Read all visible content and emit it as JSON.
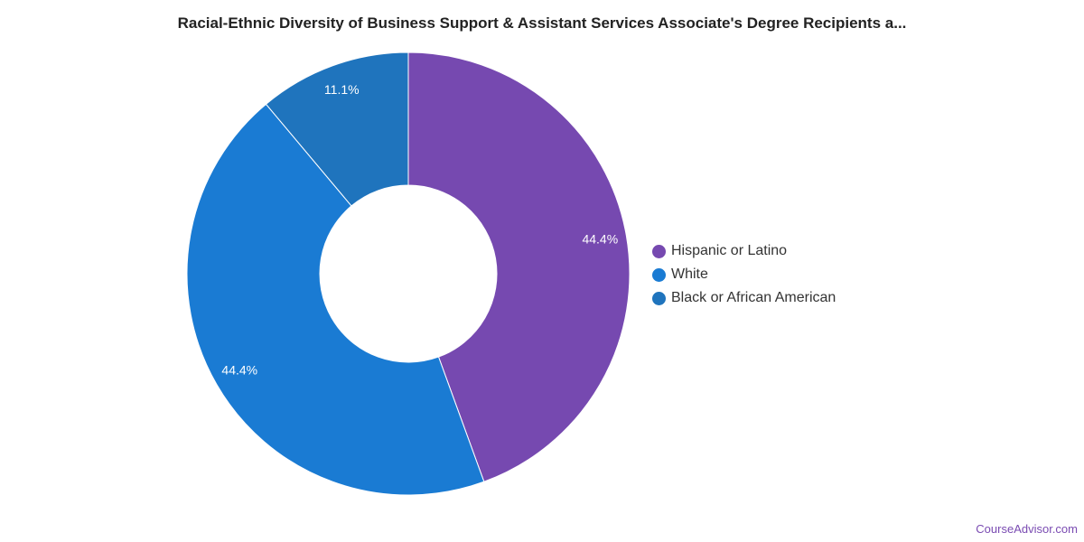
{
  "title": "Racial-Ethnic Diversity of Business Support & Assistant Services Associate's Degree Recipients a...",
  "watermark": "CourseAdvisor.com",
  "chart_data": {
    "type": "pie",
    "variant": "donut",
    "title": "Racial-Ethnic Diversity of Business Support & Assistant Services Associate's Degree Recipients a...",
    "categories": [
      "Hispanic or Latino",
      "White",
      "Black or African American"
    ],
    "values": [
      44.4,
      44.4,
      11.1
    ],
    "labels": [
      "44.4%",
      "44.4%",
      "11.1%"
    ],
    "colors": [
      "#7649b0",
      "#1a7bd3",
      "#1f74bd"
    ],
    "start_angle": "top, clockwise",
    "legend_placement": "right"
  }
}
